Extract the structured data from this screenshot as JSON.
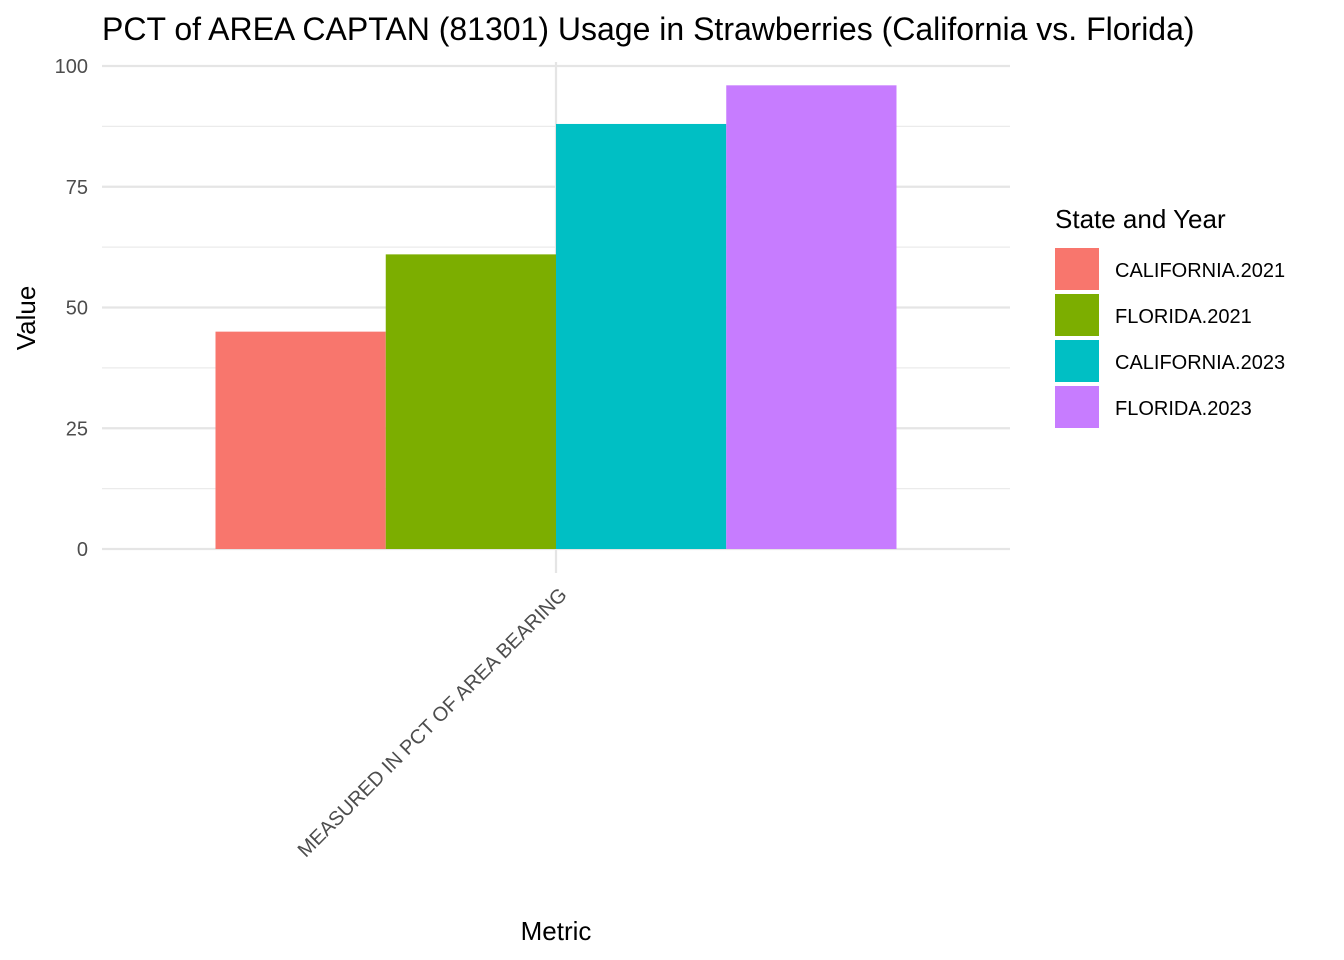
{
  "chart_data": {
    "type": "bar",
    "title": "PCT of AREA CAPTAN (81301) Usage in Strawberries (California vs. Florida)",
    "xlabel": "Metric",
    "ylabel": "Value",
    "categories": [
      "MEASURED IN PCT OF AREA BEARING"
    ],
    "series": [
      {
        "name": "CALIFORNIA.2021",
        "values": [
          45
        ],
        "color": "#F8766D"
      },
      {
        "name": "FLORIDA.2021",
        "values": [
          61
        ],
        "color": "#7CAE00"
      },
      {
        "name": "CALIFORNIA.2023",
        "values": [
          88
        ],
        "color": "#00BFC4"
      },
      {
        "name": "FLORIDA.2023",
        "values": [
          96
        ],
        "color": "#C77CFF"
      }
    ],
    "ylim": [
      0,
      100
    ],
    "yticks": [
      0,
      25,
      50,
      75,
      100
    ],
    "grid": true,
    "legend": {
      "title": "State and Year",
      "position": "right"
    }
  }
}
